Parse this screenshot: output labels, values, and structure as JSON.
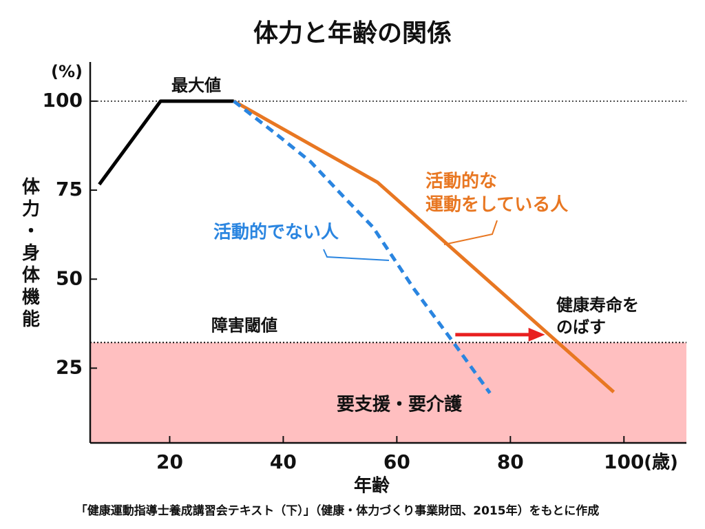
{
  "chart_data": {
    "type": "line",
    "title": "体力と年齢の関係",
    "x_label": "年齢",
    "x_unit": "(歳)",
    "y_label": "体力・身体機能",
    "y_unit": "(%)",
    "xlim": [
      6,
      111
    ],
    "ylim": [
      4,
      111
    ],
    "xticks": [
      20,
      40,
      60,
      80,
      100
    ],
    "yticks": [
      25,
      50,
      75,
      100
    ],
    "series": [
      {
        "color": "#000000",
        "dash": false,
        "x": [
          7.6,
          18.4,
          31.3
        ],
        "values": [
          76.6,
          100,
          100
        ]
      },
      {
        "color": "#e87722",
        "dash": false,
        "x": [
          31.3,
          56.6,
          98.2
        ],
        "values": [
          100,
          77.2,
          18.3
        ]
      },
      {
        "color": "#2a85e0",
        "dash": true,
        "x": [
          31.3,
          38.8,
          44.8,
          50.3,
          55.8,
          63.0,
          69.7,
          76.4
        ],
        "values": [
          100,
          90.7,
          83.0,
          73.7,
          64.6,
          47.3,
          32.8,
          18.0
        ]
      }
    ],
    "threshold": {
      "value": 32.2,
      "label": "障害閾値",
      "region_label": "要支援・要介護",
      "color": "#ffbfc0"
    },
    "peak_label": "最大値",
    "active_label": [
      "活動的な",
      "運動をしている人"
    ],
    "inactive_label": "活動的でない人",
    "extend_label": [
      "健康寿命を",
      "のばす"
    ],
    "arrow": {
      "x": [
        70.3,
        86.1
      ],
      "y": 34.4,
      "color": "#e82020"
    },
    "source": "「健康運動指導士養成講習会テキスト（下）」（健康・体力づくり事業財団、2015年）をもとに作成"
  }
}
